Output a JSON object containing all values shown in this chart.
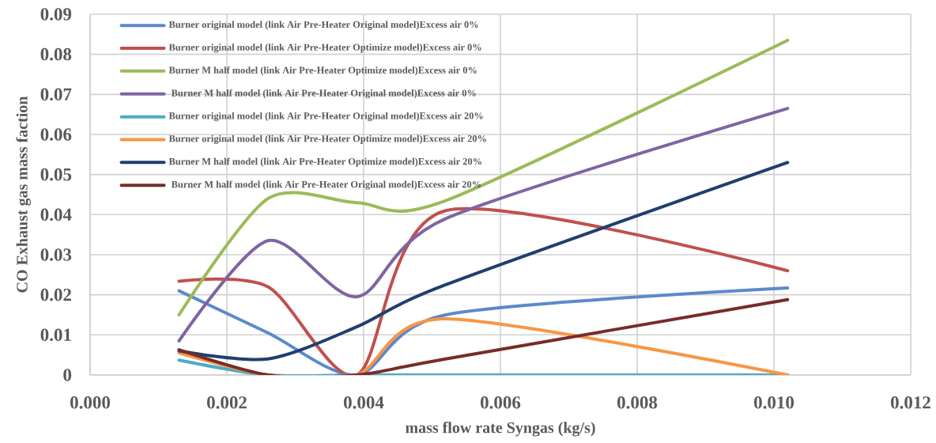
{
  "chart_data": {
    "type": "line",
    "xlabel": "mass flow rate Syngas (kg/s)",
    "ylabel": "CO Exhaust gas mass faction",
    "x": [
      0.0013,
      0.0026,
      0.0039,
      0.0052,
      0.0102
    ],
    "series": [
      {
        "name": "Burner original model (link Air Pre-Heater Original model)Excess air 0%",
        "color": "#5b8ac9",
        "values": [
          0.021,
          0.0105,
          0,
          0.015,
          0.0217
        ]
      },
      {
        "name": "Burner original model (link Air Pre-Heater Optimize model)Excess air 0%",
        "color": "#c0504d",
        "values": [
          0.0234,
          0.022,
          0,
          0.041,
          0.026
        ]
      },
      {
        "name": "Burner M half model (link Air Pre-Heater Optimize model)Excess air 0%",
        "color": "#9bbb59",
        "values": [
          0.015,
          0.044,
          0.043,
          0.0435,
          0.0835
        ]
      },
      {
        "name": " Burner M half model (link Air Pre-Heater Original model)Excess air 0%",
        "color": "#8064a2",
        "values": [
          0.0085,
          0.0335,
          0.0195,
          0.039,
          0.0665
        ]
      },
      {
        "name": "Burner original model (link Air Pre-Heater Original model)Excess air 20%",
        "color": "#4bacc6",
        "values": [
          0.0037,
          0,
          0,
          0,
          0
        ]
      },
      {
        "name": "Burner original model (link Air Pre-Heater Optimize model)Excess air 20%",
        "color": "#f79646",
        "values": [
          0.0055,
          0,
          0,
          0.014,
          0
        ]
      },
      {
        "name": "Burner M half model (link Air Pre-Heater Optimize model)Excess air 20%",
        "color": "#1f3f6e",
        "values": [
          0.006,
          0.004,
          0.012,
          0.0225,
          0.053
        ]
      },
      {
        "name": " Burner M half model (link Air Pre-Heater Original model)Excess air 20%",
        "color": "#772c2a",
        "values": [
          0.0063,
          0,
          0,
          0.004,
          0.0188
        ]
      }
    ],
    "xlim": [
      0,
      0.012
    ],
    "xticks": [
      {
        "value": 0,
        "label": "0.000"
      },
      {
        "value": 0.002,
        "label": "0.002"
      },
      {
        "value": 0.004,
        "label": "0.004"
      },
      {
        "value": 0.006,
        "label": "0.006"
      },
      {
        "value": 0.008,
        "label": "0.008"
      },
      {
        "value": 0.01,
        "label": "0.010"
      },
      {
        "value": 0.012,
        "label": "0.012"
      }
    ],
    "ylim": [
      0,
      0.09
    ],
    "yticks": [
      0,
      0.01,
      0.02,
      0.03,
      0.04,
      0.05,
      0.06,
      0.07,
      0.08,
      0.09
    ],
    "grid": true,
    "legend": "top left",
    "marker": "none",
    "line_style": "solid"
  }
}
